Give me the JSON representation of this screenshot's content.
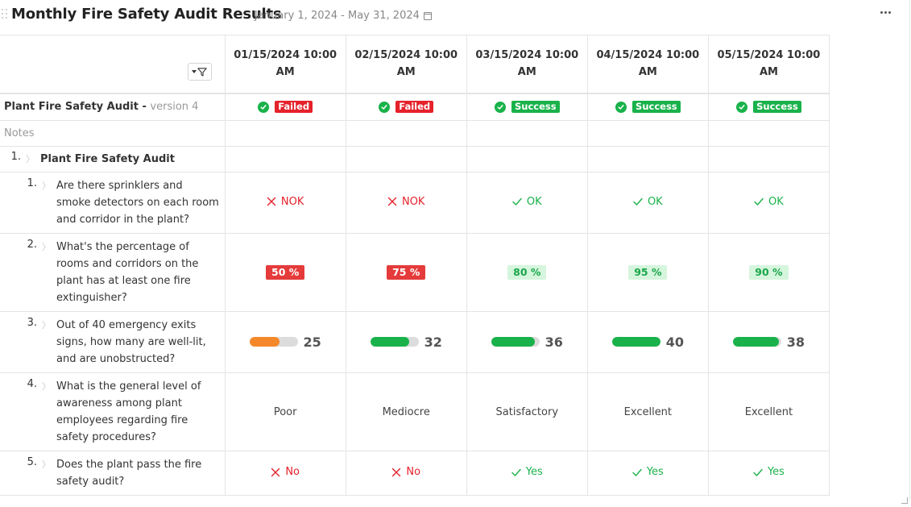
{
  "header": {
    "title": "Monthly Fire Safety Audit Results",
    "date_range": "January 1, 2024 - May 31, 2024",
    "icons": {
      "drag": "drag-handle-icon",
      "calendar": "calendar-icon",
      "more": "more-options-icon"
    }
  },
  "columns": [
    {
      "date": "01/15/2024 10:00 AM"
    },
    {
      "date": "02/15/2024 10:00 AM"
    },
    {
      "date": "03/15/2024 10:00 AM"
    },
    {
      "date": "04/15/2024 10:00 AM"
    },
    {
      "date": "05/15/2024 10:00 AM"
    }
  ],
  "version_row": {
    "label": "Plant Fire Safety Audit -",
    "version": "version 4",
    "statuses": [
      "Failed",
      "Failed",
      "Success",
      "Success",
      "Success"
    ]
  },
  "notes_label": "Notes",
  "section": {
    "number": "1.",
    "title": "Plant Fire Safety Audit"
  },
  "questions": [
    {
      "number": "1.",
      "lines": [
        "Are there sprinklers and",
        "smoke detectors on each room",
        "and corridor in the plant?"
      ],
      "type": "oknok",
      "answers": [
        "NOK",
        "NOK",
        "OK",
        "OK",
        "OK"
      ]
    },
    {
      "number": "2.",
      "lines": [
        "What's the percentage of",
        "rooms and corridors on the",
        "plant has at least one fire",
        "extinguisher?"
      ],
      "type": "percent",
      "answers": [
        "50 %",
        "75 %",
        "80 %",
        "95 %",
        "90 %"
      ]
    },
    {
      "number": "3.",
      "lines": [
        "Out of 40 emergency exits",
        "signs, how many are well-lit,",
        "and are unobstructed?"
      ],
      "type": "bar",
      "max": 40,
      "answers": [
        "25",
        "32",
        "36",
        "40",
        "38"
      ]
    },
    {
      "number": "4.",
      "lines": [
        "What is the general level of",
        "awareness among plant",
        "employees regarding fire",
        "safety procedures?"
      ],
      "type": "text",
      "answers": [
        "Poor",
        "Mediocre",
        "Satisfactory",
        "Excellent",
        "Excellent"
      ]
    },
    {
      "number": "5.",
      "lines": [
        "Does the plant pass the fire",
        "safety audit?"
      ],
      "type": "yesno",
      "answers": [
        "No",
        "No",
        "Yes",
        "Yes",
        "Yes"
      ]
    }
  ],
  "colors": {
    "red": "#e5212b",
    "green": "#19b24a",
    "orange": "#f5882a",
    "light_green_bg": "#d6f5dd"
  }
}
